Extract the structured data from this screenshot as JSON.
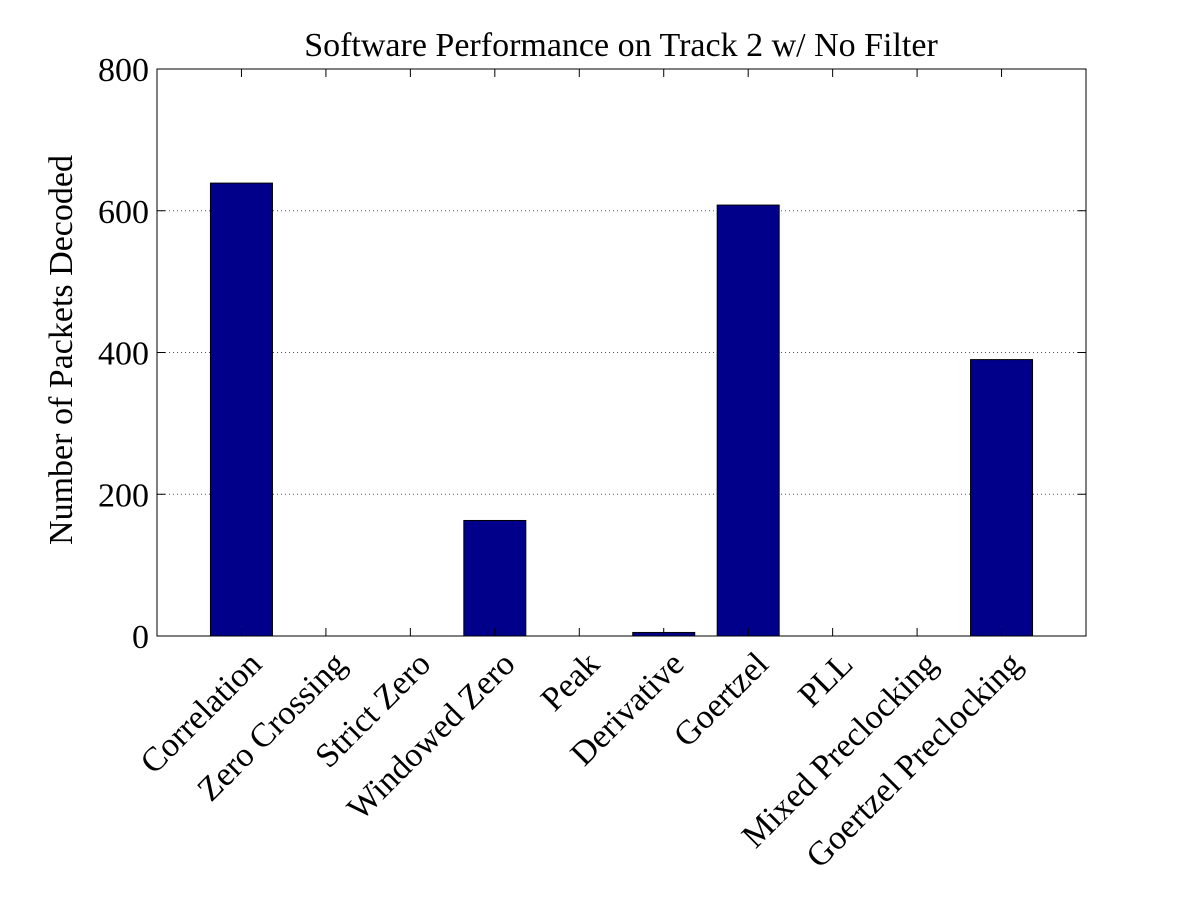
{
  "chart_data": {
    "type": "bar",
    "title": "Software Performance on Track 2 w/ No Filter",
    "xlabel": "",
    "ylabel": "Number of Packets Decoded",
    "categories": [
      "Correlation",
      "Zero Crossing",
      "Strict Zero",
      "Windowed Zero",
      "Peak",
      "Derivative",
      "Goertzel",
      "PLL",
      "Mixed Preclocking",
      "Goertzel Preclocking"
    ],
    "values": [
      639,
      0,
      0,
      163,
      0,
      5,
      608,
      0,
      0,
      390
    ],
    "ylim": [
      0,
      800
    ],
    "yticks": [
      0,
      200,
      400,
      600,
      800
    ],
    "ytick_labels": [
      "0",
      "200",
      "400",
      "600",
      "800"
    ],
    "grid": "horizontal dotted",
    "bar_color": "#00008b",
    "legend": "none"
  }
}
